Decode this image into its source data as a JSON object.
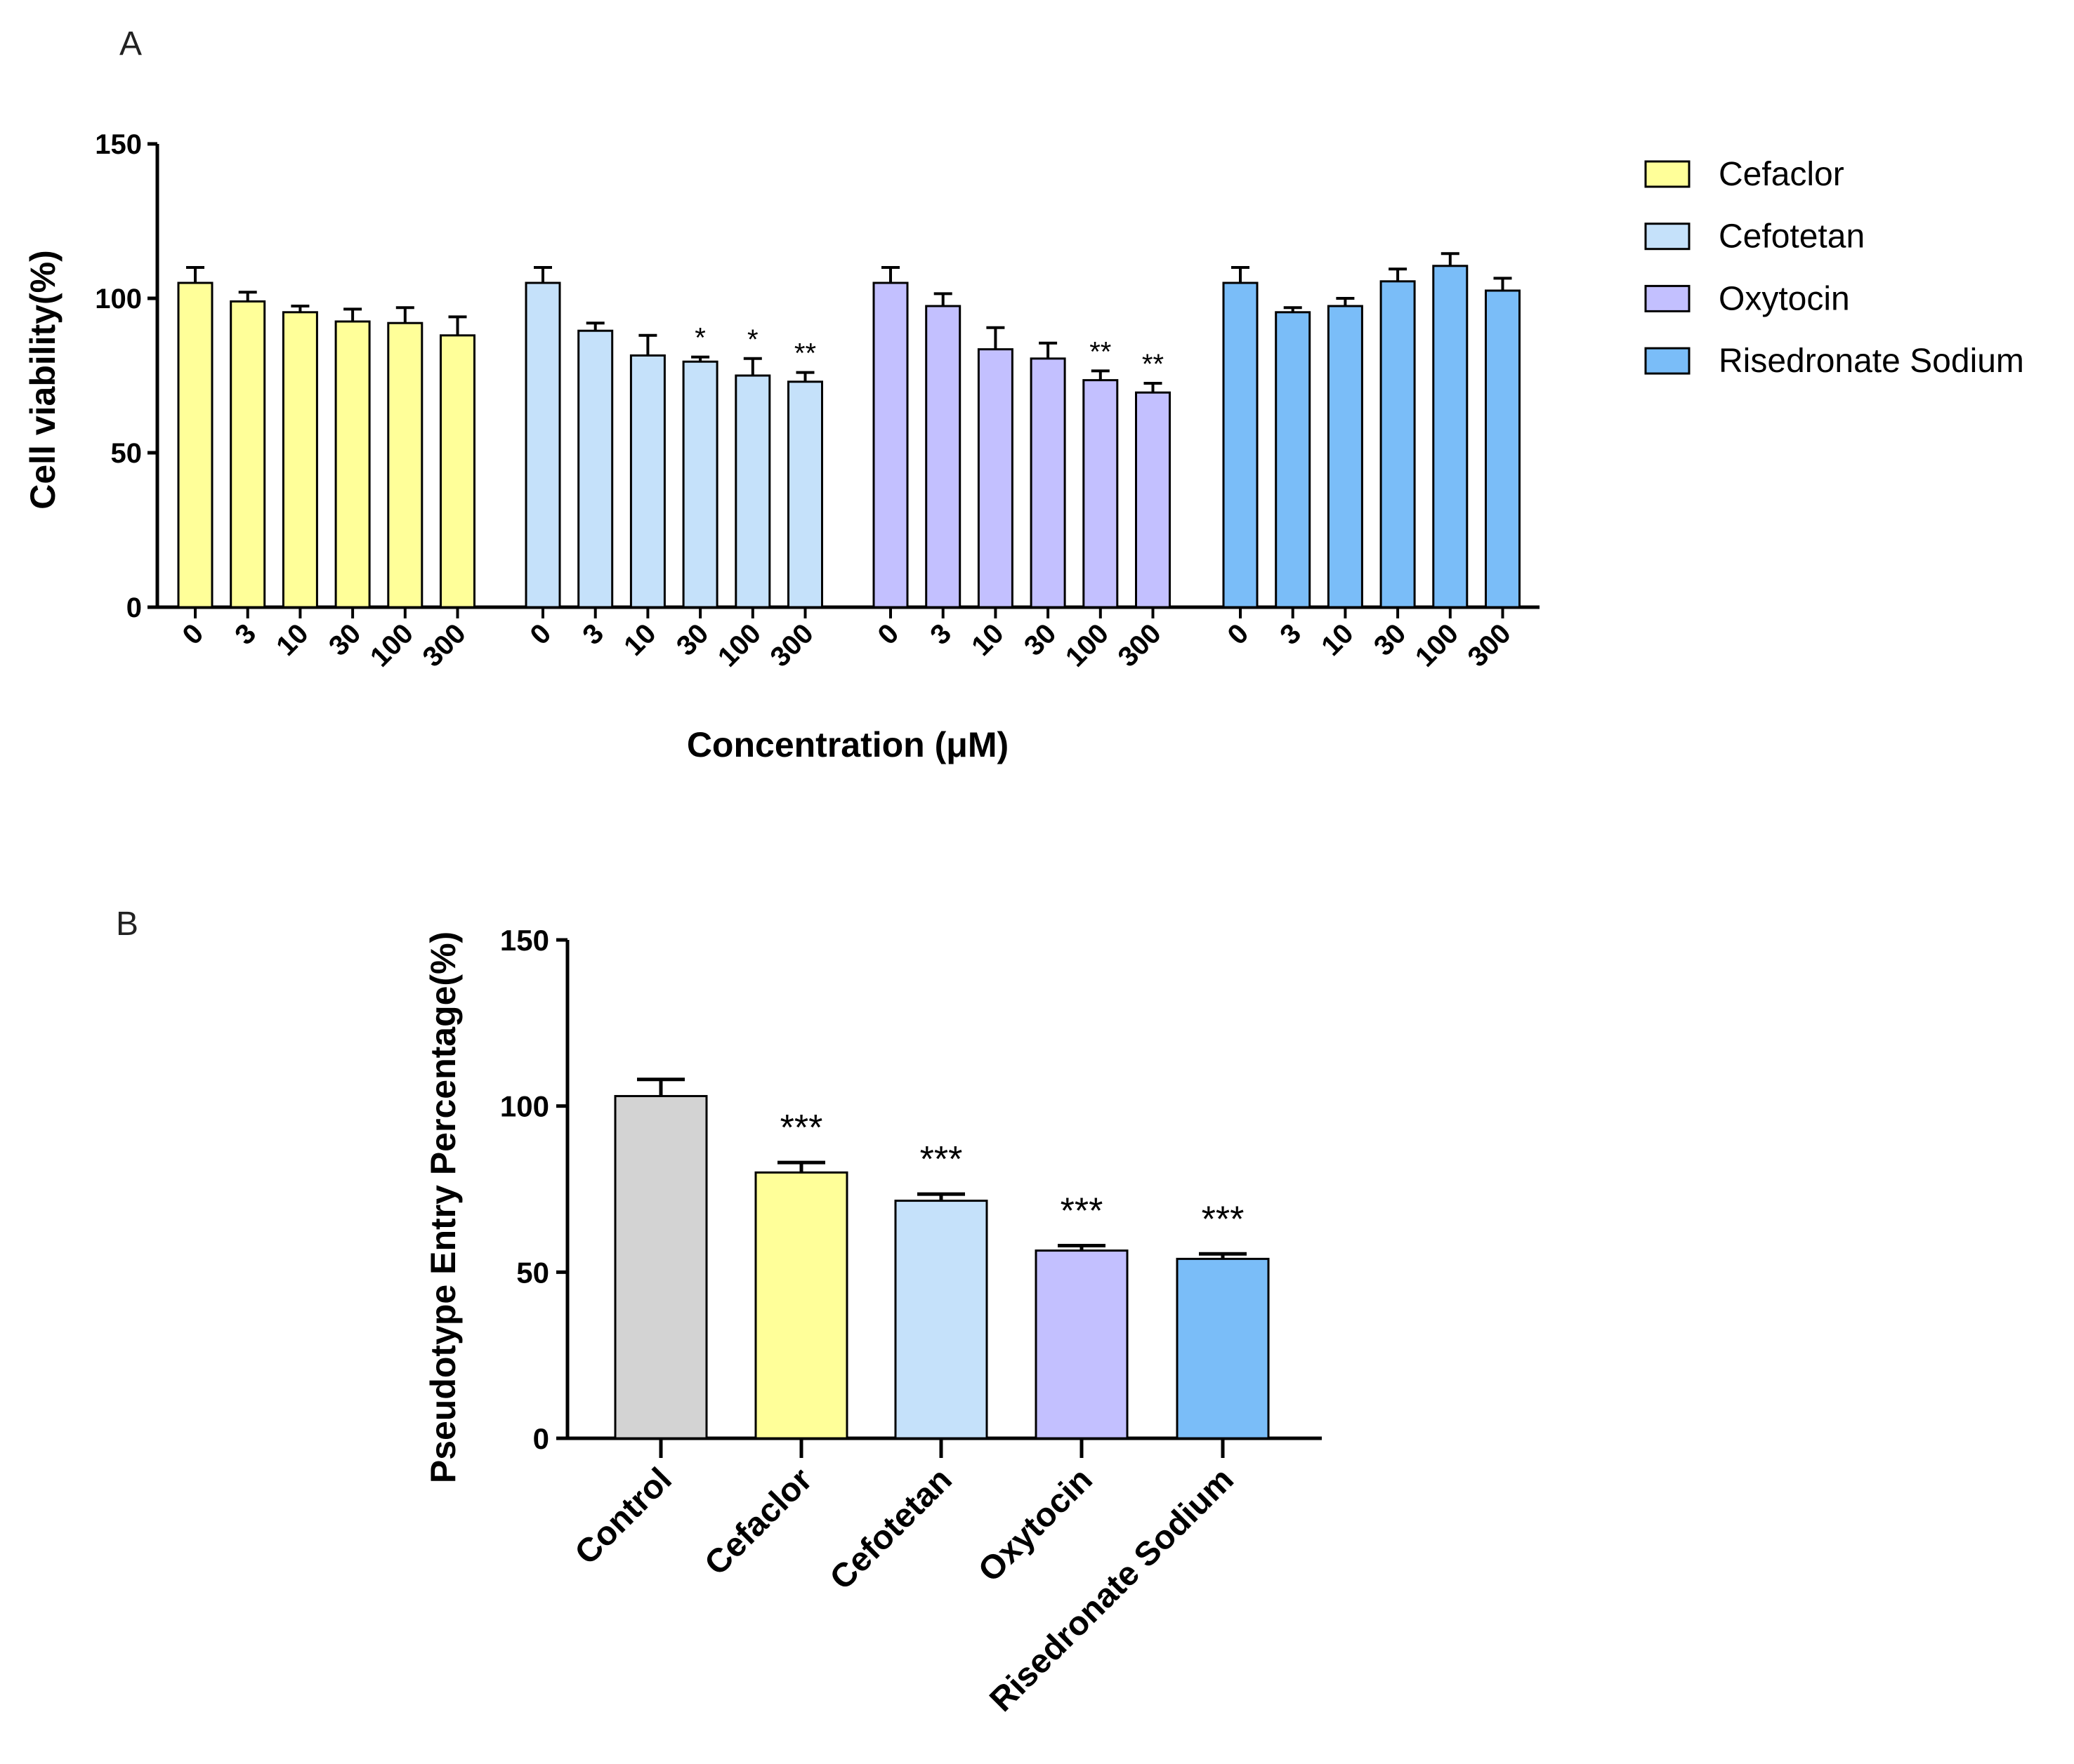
{
  "figure": {
    "panel_a_label": "A",
    "panel_b_label": "B"
  },
  "chart_data": [
    {
      "type": "bar",
      "panel": "A",
      "title": "",
      "xlabel": "Concentration (μM)",
      "ylabel": "Cell viability(%)",
      "ylim": [
        0,
        150
      ],
      "yticks": [
        0,
        50,
        100,
        150
      ],
      "categories": [
        "0",
        "3",
        "10",
        "30",
        "100",
        "300"
      ],
      "legend_position": "right",
      "series": [
        {
          "name": "Cefaclor",
          "color": "#FFFF99",
          "values": [
            105,
            99,
            95.5,
            92.5,
            92,
            88
          ],
          "errors": [
            5,
            3,
            2,
            4,
            5,
            6
          ],
          "sig": [
            "",
            "",
            "",
            "",
            "",
            ""
          ]
        },
        {
          "name": "Cefotetan",
          "color": "#C5E1FA",
          "values": [
            105,
            89.5,
            81.5,
            79.5,
            75,
            73
          ],
          "errors": [
            5,
            2.5,
            6.5,
            1.5,
            5.5,
            3
          ],
          "sig": [
            "",
            "",
            "",
            "*",
            "*",
            "**"
          ]
        },
        {
          "name": "Oxytocin",
          "color": "#C3C0FF",
          "values": [
            105,
            97.5,
            83.5,
            80.5,
            73.5,
            69.5
          ],
          "errors": [
            5,
            4,
            7,
            5,
            3,
            3
          ],
          "sig": [
            "",
            "",
            "",
            "",
            "**",
            "**"
          ]
        },
        {
          "name": "Risedronate Sodium",
          "color": "#7ABDF8",
          "values": [
            105,
            95.5,
            97.5,
            105.5,
            110.5,
            102.5
          ],
          "errors": [
            5,
            1.5,
            2.5,
            4,
            4,
            4
          ],
          "sig": [
            "",
            "",
            "",
            "",
            "",
            ""
          ]
        }
      ]
    },
    {
      "type": "bar",
      "panel": "B",
      "title": "",
      "xlabel": "",
      "ylabel": "Pseudotype Entry Percentage(%)",
      "ylim": [
        0,
        150
      ],
      "yticks": [
        0,
        50,
        100,
        150
      ],
      "categories": [
        "Control",
        "Cefaclor",
        "Cefotetan",
        "Oxytocin",
        "Risedronate Sodium"
      ],
      "values": [
        103,
        80,
        71.5,
        56.5,
        54
      ],
      "errors": [
        5,
        3,
        2,
        1.5,
        1.5
      ],
      "colors": [
        "#D3D3D3",
        "#FFFF99",
        "#C5E1FA",
        "#C3C0FF",
        "#7ABDF8"
      ],
      "sig": [
        "",
        "***",
        "***",
        "***",
        "***"
      ]
    }
  ]
}
